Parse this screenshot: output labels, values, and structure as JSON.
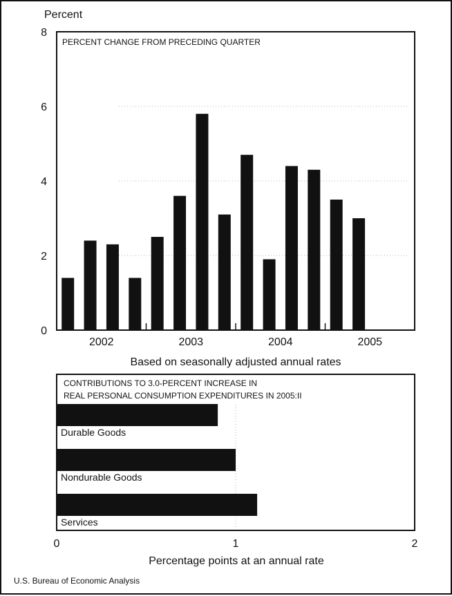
{
  "chart_data": [
    {
      "type": "bar",
      "title": "PERCENT CHANGE FROM PRECEDING QUARTER",
      "ylabel": "Percent",
      "xlabel": "Based on seasonally adjusted annual rates",
      "ylim": [
        0,
        8
      ],
      "yticks": [
        0,
        2,
        4,
        6,
        8
      ],
      "x_year_labels": [
        "2002",
        "2003",
        "2004",
        "2005"
      ],
      "categories": [
        "2002:I",
        "2002:II",
        "2002:III",
        "2002:IV",
        "2003:I",
        "2003:II",
        "2003:III",
        "2003:IV",
        "2004:I",
        "2004:II",
        "2004:III",
        "2004:IV",
        "2005:I",
        "2005:II"
      ],
      "values": [
        1.4,
        2.4,
        2.3,
        1.4,
        2.5,
        3.6,
        5.8,
        3.1,
        4.7,
        1.9,
        4.4,
        4.3,
        3.5,
        3.0
      ],
      "grid": "dotted horizontal"
    },
    {
      "type": "bar",
      "orientation": "horizontal",
      "title_lines": [
        "CONTRIBUTIONS TO 3.0-PERCENT INCREASE IN",
        "REAL PERSONAL CONSUMPTION EXPENDITURES IN 2005:II"
      ],
      "xlabel": "Percentage points at an annual rate",
      "xlim": [
        0,
        2
      ],
      "xticks": [
        0,
        1,
        2
      ],
      "categories": [
        "Durable Goods",
        "Nondurable Goods",
        "Services"
      ],
      "values": [
        0.9,
        1.0,
        1.12
      ]
    }
  ],
  "source": "U.S. Bureau of Economic Analysis",
  "colors": {
    "bar": "#111111",
    "grid": "#999999",
    "background": "#ffffff"
  }
}
